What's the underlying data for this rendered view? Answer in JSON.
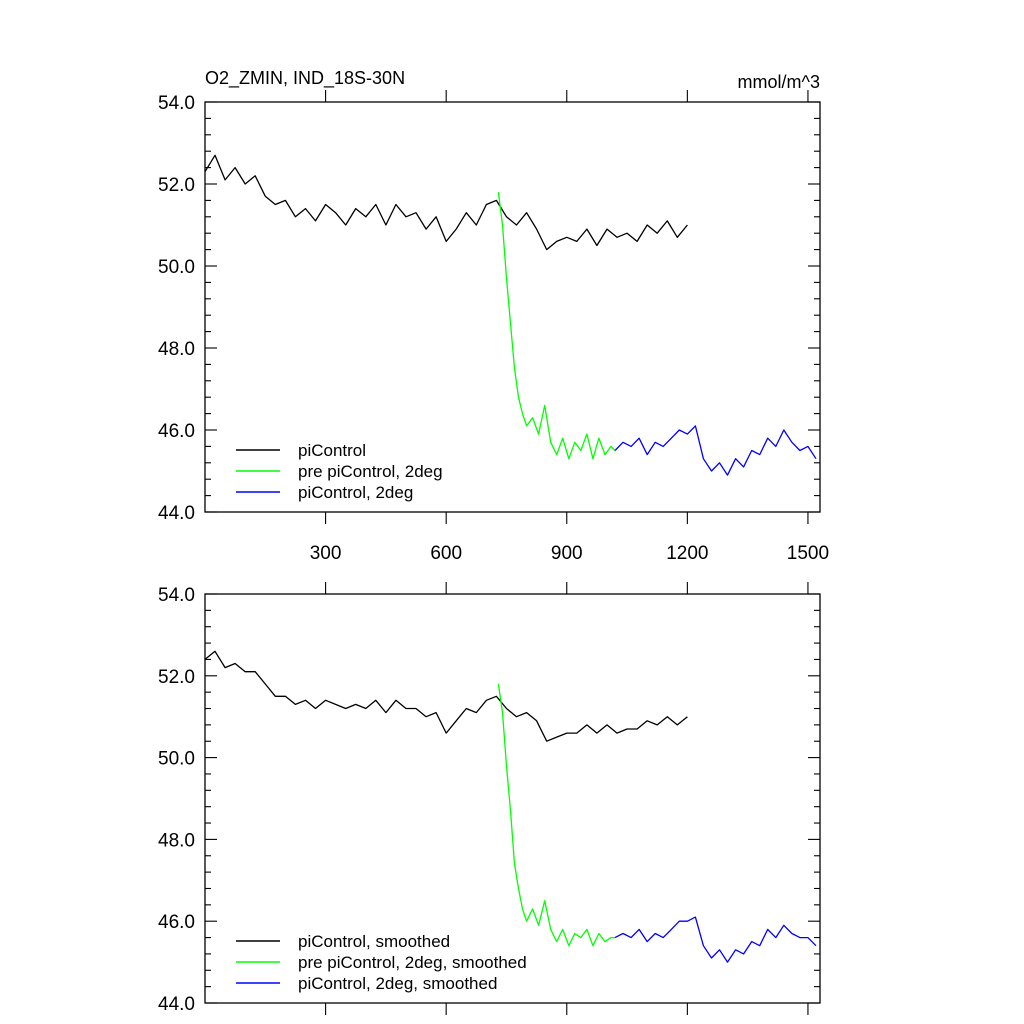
{
  "chart_data": [
    {
      "type": "line",
      "title_left": "O2_ZMIN, IND_18S-30N",
      "title_right": "mmol/m^3",
      "xlim": [
        0,
        1530
      ],
      "ylim": [
        44,
        54
      ],
      "x_ticks": [
        300,
        600,
        900,
        1200,
        1500
      ],
      "y_ticks": [
        44,
        46,
        48,
        50,
        52,
        54
      ],
      "y_tick_labels": [
        "44.0",
        "46.0",
        "48.0",
        "50.0",
        "52.0",
        "54.0"
      ],
      "grid": false,
      "legend_position": "bottom-left",
      "series": [
        {
          "name": "piControl",
          "color": "#000000",
          "x": [
            0,
            25,
            50,
            75,
            100,
            125,
            150,
            175,
            200,
            225,
            250,
            275,
            300,
            325,
            350,
            375,
            400,
            425,
            450,
            475,
            500,
            525,
            550,
            575,
            600,
            625,
            650,
            675,
            700,
            725,
            750,
            775,
            800,
            825,
            850,
            875,
            900,
            925,
            950,
            975,
            1000,
            1025,
            1050,
            1075,
            1100,
            1125,
            1150,
            1175,
            1200
          ],
          "values": [
            52.3,
            52.7,
            52.1,
            52.4,
            52.0,
            52.2,
            51.7,
            51.5,
            51.6,
            51.2,
            51.4,
            51.1,
            51.5,
            51.3,
            51.0,
            51.4,
            51.2,
            51.5,
            51.0,
            51.5,
            51.2,
            51.3,
            50.9,
            51.2,
            50.6,
            50.9,
            51.3,
            51.0,
            51.5,
            51.6,
            51.2,
            51.0,
            51.3,
            50.9,
            50.4,
            50.6,
            50.7,
            50.6,
            50.9,
            50.5,
            50.9,
            50.7,
            50.8,
            50.6,
            51.0,
            50.8,
            51.1,
            50.7,
            51.0
          ]
        },
        {
          "name": "pre piControl, 2deg",
          "color": "#00ff00",
          "x": [
            730,
            740,
            750,
            760,
            770,
            780,
            790,
            800,
            815,
            830,
            845,
            860,
            875,
            890,
            905,
            920,
            935,
            950,
            965,
            980,
            995,
            1010,
            1020
          ],
          "values": [
            51.8,
            51.0,
            49.7,
            48.6,
            47.5,
            46.8,
            46.4,
            46.1,
            46.3,
            45.9,
            46.6,
            45.7,
            45.4,
            45.8,
            45.3,
            45.7,
            45.5,
            45.9,
            45.3,
            45.8,
            45.4,
            45.6,
            45.5
          ]
        },
        {
          "name": "piControl, 2deg",
          "color": "#0000ff",
          "x": [
            1020,
            1040,
            1060,
            1080,
            1100,
            1120,
            1140,
            1160,
            1180,
            1200,
            1220,
            1240,
            1260,
            1280,
            1300,
            1320,
            1340,
            1360,
            1380,
            1400,
            1420,
            1440,
            1460,
            1480,
            1500,
            1520
          ],
          "values": [
            45.5,
            45.7,
            45.6,
            45.8,
            45.4,
            45.7,
            45.6,
            45.8,
            46.0,
            45.9,
            46.1,
            45.3,
            45.0,
            45.2,
            44.9,
            45.3,
            45.1,
            45.5,
            45.4,
            45.8,
            45.6,
            46.0,
            45.7,
            45.5,
            45.6,
            45.3
          ]
        }
      ]
    },
    {
      "type": "line",
      "xlim": [
        0,
        1530
      ],
      "ylim": [
        44,
        54
      ],
      "x_ticks": [
        300,
        600,
        900,
        1200,
        1500
      ],
      "y_ticks": [
        44,
        46,
        48,
        50,
        52,
        54
      ],
      "y_tick_labels": [
        "44.0",
        "46.0",
        "48.0",
        "50.0",
        "52.0",
        "54.0"
      ],
      "grid": false,
      "legend_position": "bottom-left",
      "series": [
        {
          "name": "piControl, smoothed",
          "color": "#000000",
          "x": [
            0,
            25,
            50,
            75,
            100,
            125,
            150,
            175,
            200,
            225,
            250,
            275,
            300,
            325,
            350,
            375,
            400,
            425,
            450,
            475,
            500,
            525,
            550,
            575,
            600,
            625,
            650,
            675,
            700,
            725,
            750,
            775,
            800,
            825,
            850,
            875,
            900,
            925,
            950,
            975,
            1000,
            1025,
            1050,
            1075,
            1100,
            1125,
            1150,
            1175,
            1200
          ],
          "values": [
            52.4,
            52.6,
            52.2,
            52.3,
            52.1,
            52.1,
            51.8,
            51.5,
            51.5,
            51.3,
            51.4,
            51.2,
            51.4,
            51.3,
            51.2,
            51.3,
            51.2,
            51.4,
            51.1,
            51.4,
            51.2,
            51.2,
            51.0,
            51.1,
            50.6,
            50.9,
            51.2,
            51.1,
            51.4,
            51.5,
            51.2,
            51.0,
            51.1,
            50.9,
            50.4,
            50.5,
            50.6,
            50.6,
            50.8,
            50.6,
            50.8,
            50.6,
            50.7,
            50.7,
            50.9,
            50.8,
            51.0,
            50.8,
            51.0
          ]
        },
        {
          "name": "pre piControl, 2deg, smoothed",
          "color": "#00ff00",
          "x": [
            730,
            740,
            750,
            760,
            770,
            780,
            790,
            800,
            815,
            830,
            845,
            860,
            875,
            890,
            905,
            920,
            935,
            950,
            965,
            980,
            995,
            1010,
            1020
          ],
          "values": [
            51.8,
            51.1,
            49.8,
            48.7,
            47.4,
            46.8,
            46.3,
            46.0,
            46.3,
            45.9,
            46.5,
            45.8,
            45.5,
            45.8,
            45.4,
            45.7,
            45.6,
            45.8,
            45.4,
            45.7,
            45.5,
            45.6,
            45.6
          ]
        },
        {
          "name": "piControl, 2deg, smoothed",
          "color": "#0000ff",
          "x": [
            1020,
            1040,
            1060,
            1080,
            1100,
            1120,
            1140,
            1160,
            1180,
            1200,
            1220,
            1240,
            1260,
            1280,
            1300,
            1320,
            1340,
            1360,
            1380,
            1400,
            1420,
            1440,
            1460,
            1480,
            1500,
            1520
          ],
          "values": [
            45.6,
            45.7,
            45.6,
            45.8,
            45.5,
            45.7,
            45.6,
            45.8,
            46.0,
            46.0,
            46.1,
            45.4,
            45.1,
            45.3,
            45.0,
            45.3,
            45.2,
            45.5,
            45.4,
            45.8,
            45.6,
            45.9,
            45.7,
            45.6,
            45.6,
            45.4
          ]
        }
      ]
    }
  ]
}
